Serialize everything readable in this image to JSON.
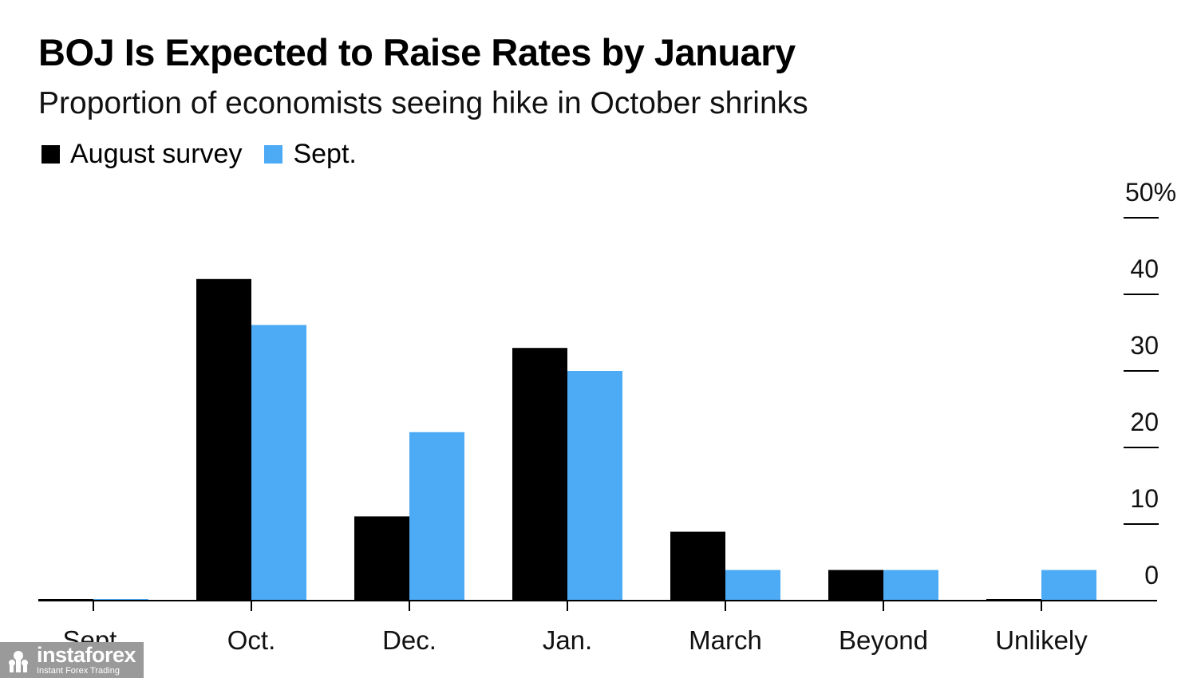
{
  "header": {
    "title": "BOJ Is Expected to Raise Rates by January",
    "subtitle": "Proportion of economists seeing hike in October shrinks"
  },
  "legend": [
    {
      "label": "August survey",
      "color": "#000000"
    },
    {
      "label": "Sept.",
      "color": "#4DAAF5"
    }
  ],
  "chart_data": {
    "type": "bar",
    "title": "BOJ Is Expected to Raise Rates by January",
    "subtitle": "Proportion of economists seeing hike in October shrinks",
    "categories": [
      "Sept.",
      "Oct.",
      "Dec.",
      "Jan.",
      "March",
      "Beyond",
      "Unlikely"
    ],
    "series": [
      {
        "name": "August survey",
        "color": "#000000",
        "values": [
          0,
          42,
          11,
          33,
          9,
          4,
          0
        ]
      },
      {
        "name": "Sept.",
        "color": "#4DAAF5",
        "values": [
          0,
          36,
          22,
          30,
          4,
          4,
          4
        ]
      }
    ],
    "ylim": [
      0,
      50
    ],
    "yticks": [
      0,
      10,
      20,
      30,
      40,
      50
    ],
    "ytick_labels": [
      "0",
      "10",
      "20",
      "30",
      "40",
      "50%"
    ],
    "y_axis_side": "right",
    "xlabel": "",
    "ylabel": "",
    "grid": false
  },
  "watermark": {
    "brand": "instaforex",
    "tagline": "Instant Forex Trading"
  }
}
